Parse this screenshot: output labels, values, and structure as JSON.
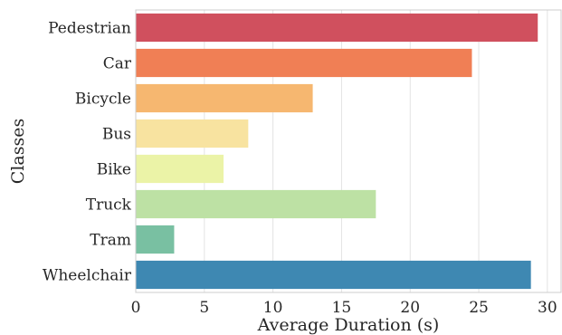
{
  "chart_data": {
    "type": "bar",
    "orientation": "horizontal",
    "title": "",
    "xlabel": "Average Duration (s)",
    "ylabel": "Classes",
    "categories": [
      "Pedestrian",
      "Car",
      "Bicycle",
      "Bus",
      "Bike",
      "Truck",
      "Tram",
      "Wheelchair"
    ],
    "values": [
      29.3,
      24.5,
      12.9,
      8.2,
      6.4,
      17.5,
      2.8,
      28.8
    ],
    "colors": [
      "#d0505e",
      "#f07f55",
      "#f6b770",
      "#f8e3a0",
      "#ebf3a7",
      "#bde1a4",
      "#79c0a2",
      "#3e88b2"
    ],
    "xlim": [
      0,
      31
    ],
    "xticks": [
      0,
      5,
      10,
      15,
      20,
      25,
      30
    ],
    "grid": true
  }
}
